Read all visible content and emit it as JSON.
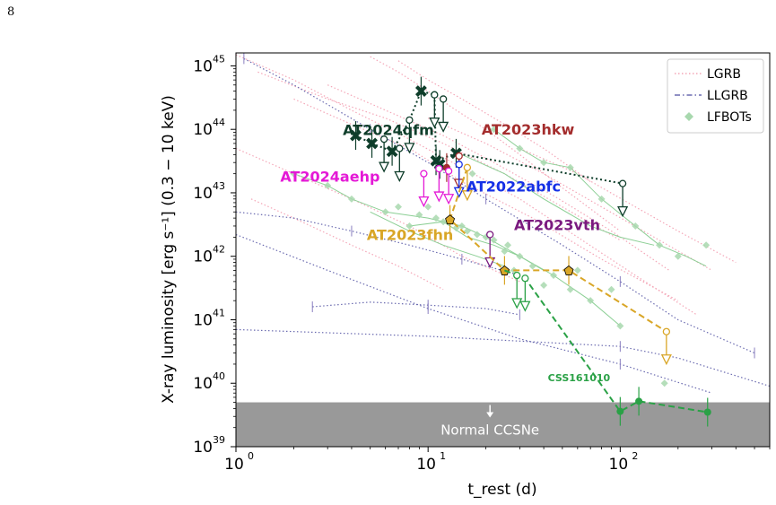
{
  "page_number": "8",
  "chart_data": {
    "type": "scatter",
    "xlabel": "t_rest (d)",
    "ylabel": "X-ray luminosity [erg s⁻¹] (0.3 − 10 keV)",
    "x_scale": "log",
    "y_scale": "log",
    "xlim": [
      1,
      600
    ],
    "ylim": [
      1e+39,
      1.6e+45
    ],
    "x_ticks": [
      {
        "v": 1,
        "label": "10",
        "exp": "0"
      },
      {
        "v": 10,
        "label": "10",
        "exp": "1"
      },
      {
        "v": 100,
        "label": "10",
        "exp": "2"
      }
    ],
    "y_ticks": [
      {
        "v": 1e+39,
        "label": "10",
        "exp": "39"
      },
      {
        "v": 1e+40,
        "label": "10",
        "exp": "40"
      },
      {
        "v": 1e+41,
        "label": "10",
        "exp": "41"
      },
      {
        "v": 1e+42,
        "label": "10",
        "exp": "42"
      },
      {
        "v": 1e+43,
        "label": "10",
        "exp": "43"
      },
      {
        "v": 1e+44,
        "label": "10",
        "exp": "44"
      },
      {
        "v": 1e+45,
        "label": "10",
        "exp": "45"
      }
    ],
    "grid": false,
    "legend_position": "top-right",
    "legend": [
      {
        "label": "LGRB",
        "color": "#f4a6b7",
        "style": "dotted"
      },
      {
        "label": "LLGRB",
        "color": "#6b6bb0",
        "style": "dashdot"
      },
      {
        "label": "LFBOTs",
        "color": "#a8d8ae",
        "style": "diamond"
      }
    ],
    "ccsne_region": {
      "label": "Normal CCSNe",
      "y_max": 5e+39,
      "color": "#999999"
    },
    "lgrb_curves": [
      [
        [
          1,
          1.5e+45
        ],
        [
          2,
          6e+44
        ],
        [
          4,
          2e+44
        ],
        [
          8,
          7e+43
        ],
        [
          15,
          2.5e+43
        ],
        [
          30,
          8e+42
        ],
        [
          60,
          2e+42
        ],
        [
          120,
          5e+41
        ],
        [
          250,
          1.2e+41
        ]
      ],
      [
        [
          1.3,
          8e+44
        ],
        [
          3,
          3e+44
        ],
        [
          6,
          1.5e+44
        ],
        [
          12,
          6e+43
        ],
        [
          25,
          2e+43
        ],
        [
          50,
          6e+42
        ],
        [
          100,
          1.8e+42
        ]
      ],
      [
        [
          2,
          3e+44
        ],
        [
          4,
          1.2e+44
        ],
        [
          8,
          5e+43
        ],
        [
          15,
          1.5e+43
        ],
        [
          35,
          4e+42
        ],
        [
          80,
          9e+41
        ],
        [
          200,
          2e+41
        ]
      ],
      [
        [
          5,
          1.4e+45
        ],
        [
          7,
          8e+44
        ],
        [
          10,
          4e+44
        ],
        [
          14,
          2e+44
        ],
        [
          20,
          1e+44
        ],
        [
          30,
          4e+43
        ],
        [
          50,
          1.2e+43
        ],
        [
          100,
          2.5e+42
        ]
      ],
      [
        [
          7,
          1.2e+45
        ],
        [
          10,
          6e+44
        ],
        [
          15,
          3e+44
        ],
        [
          25,
          1.2e+44
        ],
        [
          40,
          5e+43
        ],
        [
          70,
          1.5e+43
        ]
      ],
      [
        [
          1,
          5e+43
        ],
        [
          2,
          2e+43
        ],
        [
          4,
          8e+42
        ],
        [
          8,
          3e+42
        ],
        [
          15,
          1e+42
        ],
        [
          30,
          4e+41
        ]
      ],
      [
        [
          1.2,
          8e+42
        ],
        [
          2,
          4e+42
        ],
        [
          4,
          1.5e+42
        ],
        [
          7,
          7e+41
        ],
        [
          12,
          3e+41
        ]
      ],
      [
        [
          30,
          5e+43
        ],
        [
          60,
          2e+43
        ],
        [
          120,
          6e+42
        ],
        [
          200,
          2.5e+42
        ],
        [
          400,
          8e+41
        ]
      ],
      [
        [
          10,
          1.5e+44
        ],
        [
          20,
          6e+43
        ],
        [
          40,
          2e+43
        ],
        [
          80,
          6e+42
        ],
        [
          150,
          2e+42
        ],
        [
          300,
          6e+41
        ]
      ],
      [
        [
          3,
          5e+44
        ],
        [
          6,
          2e+44
        ],
        [
          12,
          8e+43
        ],
        [
          22,
          3e+43
        ],
        [
          45,
          9e+42
        ],
        [
          90,
          2.5e+42
        ],
        [
          180,
          6e+41
        ]
      ]
    ],
    "llgrb_curves": [
      [
        [
          1.1,
          1.3e+45
        ],
        [
          2,
          5e+44
        ],
        [
          5,
          1e+44
        ],
        [
          10,
          3e+43
        ],
        [
          20,
          8e+42
        ],
        [
          50,
          1.5e+42
        ],
        [
          100,
          4e+41
        ],
        [
          200,
          1e+41
        ],
        [
          500,
          3e+40
        ]
      ],
      [
        [
          1,
          2.2e+42
        ],
        [
          3,
          6e+41
        ],
        [
          10,
          1.5e+41
        ],
        [
          30,
          5e+40
        ],
        [
          100,
          2e+40
        ],
        [
          300,
          7e+39
        ]
      ],
      [
        [
          1,
          5e+42
        ],
        [
          2,
          4e+42
        ],
        [
          4,
          2.5e+42
        ],
        [
          8,
          1.5e+42
        ],
        [
          15,
          9e+41
        ],
        [
          30,
          5e+41
        ]
      ],
      [
        [
          2.5,
          1.6e+41
        ],
        [
          5,
          1.9e+41
        ],
        [
          10,
          1.7e+41
        ],
        [
          20,
          1.5e+41
        ],
        [
          30,
          1.2e+41
        ]
      ],
      [
        [
          1,
          7e+40
        ],
        [
          10,
          5.5e+40
        ],
        [
          100,
          3.8e+40
        ],
        [
          200,
          2.5e+40
        ],
        [
          600,
          9e+39
        ]
      ]
    ],
    "lfbot_curves": [
      [
        [
          2,
          2e+43
        ],
        [
          3,
          1.3e+43
        ],
        [
          4,
          8e+42
        ],
        [
          6,
          5e+42
        ],
        [
          10,
          4e+42
        ],
        [
          15,
          3e+42
        ],
        [
          20,
          2e+42
        ],
        [
          30,
          1e+42
        ],
        [
          45,
          5e+41
        ],
        [
          70,
          2e+41
        ],
        [
          100,
          8e+40
        ]
      ],
      [
        [
          8,
          3e+42
        ],
        [
          12,
          3.5e+42
        ],
        [
          16,
          2e+42
        ],
        [
          22,
          1.5e+42
        ],
        [
          30,
          1e+42
        ],
        [
          40,
          6e+41
        ]
      ],
      [
        [
          5,
          5e+42
        ],
        [
          8,
          2.5e+42
        ],
        [
          12,
          1.5e+42
        ],
        [
          18,
          1e+42
        ],
        [
          25,
          7e+41
        ]
      ],
      [
        [
          22,
          1e+44
        ],
        [
          30,
          5e+43
        ],
        [
          40,
          3e+43
        ],
        [
          55,
          2.5e+43
        ],
        [
          80,
          8e+42
        ],
        [
          120,
          3e+42
        ],
        [
          160,
          1.5e+42
        ],
        [
          220,
          1e+42
        ],
        [
          280,
          7e+41
        ]
      ],
      [
        [
          15,
          4e+43
        ],
        [
          25,
          2e+43
        ],
        [
          40,
          8e+42
        ],
        [
          70,
          3e+42
        ],
        [
          100,
          2e+42
        ],
        [
          150,
          1.5e+42
        ]
      ]
    ],
    "lfbot_points": [
      [
        2,
        2e+43
      ],
      [
        3,
        1.3e+43
      ],
      [
        4,
        8e+42
      ],
      [
        6,
        5e+42
      ],
      [
        7,
        6e+42
      ],
      [
        9,
        4.5e+42
      ],
      [
        11,
        4e+42
      ],
      [
        13,
        3.5e+42
      ],
      [
        15,
        3e+42
      ],
      [
        16,
        2.5e+42
      ],
      [
        18,
        2.2e+42
      ],
      [
        20,
        2e+42
      ],
      [
        22,
        1.8e+42
      ],
      [
        26,
        1.5e+42
      ],
      [
        30,
        1e+42
      ],
      [
        35,
        7e+41
      ],
      [
        45,
        5e+41
      ],
      [
        55,
        3e+41
      ],
      [
        70,
        2e+41
      ],
      [
        100,
        8e+40
      ],
      [
        170,
        1e+40
      ],
      [
        22,
        1e+44
      ],
      [
        30,
        5e+43
      ],
      [
        40,
        3e+43
      ],
      [
        55,
        2.5e+43
      ],
      [
        80,
        8e+42
      ],
      [
        120,
        3e+42
      ],
      [
        160,
        1.5e+42
      ],
      [
        280,
        1.5e+42
      ],
      [
        8,
        3e+42
      ],
      [
        12,
        3.5e+42
      ],
      [
        14,
        2.8e+42
      ],
      [
        25,
        1.2e+42
      ],
      [
        28,
        6e+41
      ],
      [
        40,
        3.5e+41
      ],
      [
        17,
        2e+43
      ],
      [
        12,
        2.5e+43
      ],
      [
        60,
        6e+41
      ],
      [
        90,
        3e+41
      ],
      [
        200,
        1e+42
      ],
      [
        10,
        6e+42
      ]
    ],
    "events": [
      {
        "name": "AT2024qfm",
        "color": "#0e3d2a",
        "label_pos": {
          "x": 3.6,
          "y": 8.2e+43
        },
        "detections": [
          [
            4.2,
            8e+43
          ],
          [
            5.1,
            6e+43
          ],
          [
            6.5,
            4.5e+43
          ],
          [
            11,
            3.2e+43
          ],
          [
            14,
            4.2e+43
          ],
          [
            9.2,
            4e+44
          ],
          [
            11.5,
            2.8e+43
          ]
        ],
        "upper_limits": [
          [
            5.9,
            7e+43
          ],
          [
            7.1,
            5e+43
          ],
          [
            8,
            1.4e+44
          ],
          [
            10.8,
            3.5e+44
          ],
          [
            12,
            3e+44
          ],
          [
            103,
            1.4e+43
          ]
        ],
        "line": [
          [
            4.2,
            8e+43
          ],
          [
            5.1,
            6e+43
          ],
          [
            6.5,
            4.5e+43
          ],
          [
            8,
            1.4e+44
          ],
          [
            9.2,
            4e+44
          ],
          [
            10.8,
            3.5e+44
          ],
          [
            11,
            3.2e+43
          ],
          [
            14,
            4.2e+43
          ],
          [
            103,
            1.4e+43
          ]
        ],
        "line_style": "dotted"
      },
      {
        "name": "AT2023hkw",
        "color": "#a42d2d",
        "label_pos": {
          "x": 19,
          "y": 8.3e+43
        },
        "detections": [
          [
            12.5,
            2.5e+43
          ]
        ],
        "upper_limits": [
          [
            14.5,
            3.8e+43
          ]
        ],
        "line": [],
        "line_style": "none"
      },
      {
        "name": "AT2024aehp",
        "color": "#e419d6",
        "label_pos": {
          "x": 1.7,
          "y": 1.5e+43
        },
        "detections": [],
        "upper_limits": [
          [
            9.5,
            2e+43
          ],
          [
            11.4,
            2.4e+43
          ],
          [
            12.8,
            2.2e+43
          ]
        ],
        "line": [],
        "line_style": "none"
      },
      {
        "name": "AT2022abfc",
        "color": "#1530e6",
        "label_pos": {
          "x": 15.8,
          "y": 1.05e+43
        },
        "detections": [],
        "upper_limits": [
          [
            14.5,
            2.8e+43
          ]
        ],
        "line": [],
        "line_style": "none"
      },
      {
        "name": "AT2023vth",
        "color": "#7a1a7f",
        "label_pos": {
          "x": 28,
          "y": 2.6e+42
        },
        "detections": [],
        "upper_limits": [
          [
            21,
            2.2e+42
          ]
        ],
        "line": [],
        "line_style": "none"
      },
      {
        "name": "AT2023fhn",
        "color": "#d9a627",
        "label_pos": {
          "x": 4.8,
          "y": 1.8e+42
        },
        "detections": [
          [
            13,
            3.8e+42
          ],
          [
            25,
            6e+41
          ],
          [
            54,
            6e+41
          ]
        ],
        "upper_limits": [
          [
            16,
            2.5e+43
          ],
          [
            174,
            6.5e+40
          ]
        ],
        "line": [
          [
            16,
            2.5e+43
          ],
          [
            13,
            3.8e+42
          ],
          [
            25,
            6e+41
          ],
          [
            54,
            6e+41
          ],
          [
            174,
            6.5e+40
          ]
        ],
        "line_style": "dashed"
      },
      {
        "name": "CSS161010",
        "color": "#2aa146",
        "label_pos": {
          "x": 42,
          "y": 1.08e+40
        },
        "detections": [
          [
            100,
            3.6e+39
          ],
          [
            125,
            5.2e+39
          ],
          [
            285,
            3.5e+39
          ]
        ],
        "upper_limits": [
          [
            29,
            5e+41
          ],
          [
            32,
            4.5e+41
          ]
        ],
        "line": [
          [
            25,
            6e+41
          ],
          [
            32,
            4.5e+41
          ],
          [
            100,
            3.6e+39
          ],
          [
            125,
            5.2e+39
          ],
          [
            285,
            3.5e+39
          ]
        ],
        "line_style": "dashed"
      }
    ]
  }
}
